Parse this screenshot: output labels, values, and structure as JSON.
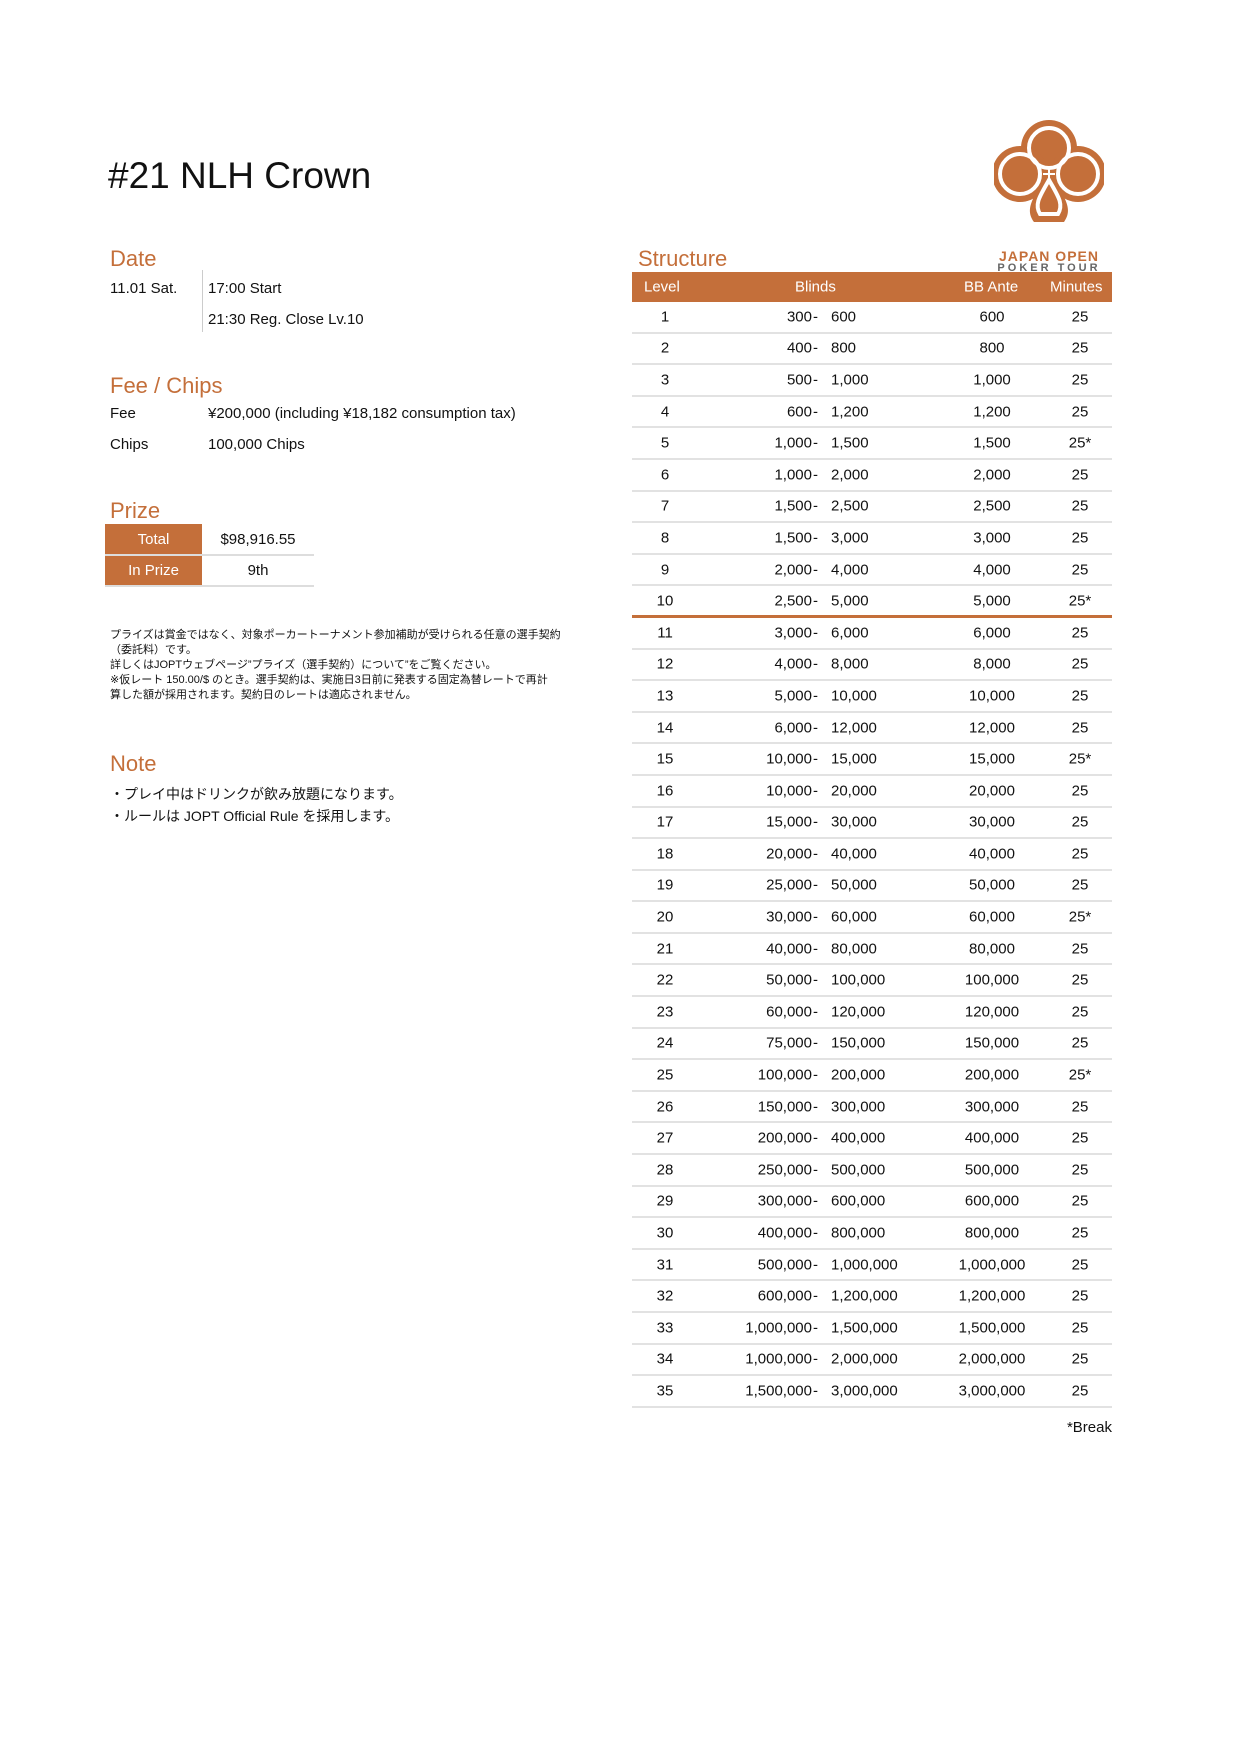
{
  "title": "#21 NLH Crown",
  "logo": {
    "line1": "JAPAN OPEN",
    "line2": "POKER TOUR",
    "color": "#c46f3a"
  },
  "date": {
    "heading": "Date",
    "day": "11.01 Sat.",
    "start": "17:00 Start",
    "close": "21:30 Reg. Close Lv.10"
  },
  "fee": {
    "heading": "Fee / Chips",
    "fee_label": "Fee",
    "fee_value": "¥200,000 (including ¥18,182 consumption tax)",
    "chips_label": "Chips",
    "chips_value": "100,000 Chips"
  },
  "prize": {
    "heading": "Prize",
    "total_label": "Total",
    "total_value": "$98,916.55",
    "inprize_label": "In Prize",
    "inprize_value": "9th"
  },
  "disclaimer": [
    "プライズは賞金ではなく、対象ポーカートーナメント参加補助が受けられる任意の選手契約",
    "（委託料）です。",
    "詳しくはJOPTウェブページ”プライズ（選手契約）について”をご覧ください。",
    "※仮レート 150.00/$ のとき。選手契約は、実施日3日前に発表する固定為替レートで再計",
    "算した額が採用されます。契約日のレートは適応されません。"
  ],
  "note": {
    "heading": "Note",
    "lines": [
      "・プレイ中はドリンクが飲み放題になります。",
      "・ルールは JOPT Official Rule を採用します。"
    ]
  },
  "structure": {
    "heading": "Structure",
    "columns": [
      "Level",
      "Blinds",
      "BB Ante",
      "Minutes"
    ],
    "rows": [
      [
        "1",
        "300",
        "600",
        "600",
        "25"
      ],
      [
        "2",
        "400",
        "800",
        "800",
        "25"
      ],
      [
        "3",
        "500",
        "1,000",
        "1,000",
        "25"
      ],
      [
        "4",
        "600",
        "1,200",
        "1,200",
        "25"
      ],
      [
        "5",
        "1,000",
        "1,500",
        "1,500",
        "25*"
      ],
      [
        "6",
        "1,000",
        "2,000",
        "2,000",
        "25"
      ],
      [
        "7",
        "1,500",
        "2,500",
        "2,500",
        "25"
      ],
      [
        "8",
        "1,500",
        "3,000",
        "3,000",
        "25"
      ],
      [
        "9",
        "2,000",
        "4,000",
        "4,000",
        "25"
      ],
      [
        "10",
        "2,500",
        "5,000",
        "5,000",
        "25*"
      ],
      [
        "11",
        "3,000",
        "6,000",
        "6,000",
        "25"
      ],
      [
        "12",
        "4,000",
        "8,000",
        "8,000",
        "25"
      ],
      [
        "13",
        "5,000",
        "10,000",
        "10,000",
        "25"
      ],
      [
        "14",
        "6,000",
        "12,000",
        "12,000",
        "25"
      ],
      [
        "15",
        "10,000",
        "15,000",
        "15,000",
        "25*"
      ],
      [
        "16",
        "10,000",
        "20,000",
        "20,000",
        "25"
      ],
      [
        "17",
        "15,000",
        "30,000",
        "30,000",
        "25"
      ],
      [
        "18",
        "20,000",
        "40,000",
        "40,000",
        "25"
      ],
      [
        "19",
        "25,000",
        "50,000",
        "50,000",
        "25"
      ],
      [
        "20",
        "30,000",
        "60,000",
        "60,000",
        "25*"
      ],
      [
        "21",
        "40,000",
        "80,000",
        "80,000",
        "25"
      ],
      [
        "22",
        "50,000",
        "100,000",
        "100,000",
        "25"
      ],
      [
        "23",
        "60,000",
        "120,000",
        "120,000",
        "25"
      ],
      [
        "24",
        "75,000",
        "150,000",
        "150,000",
        "25"
      ],
      [
        "25",
        "100,000",
        "200,000",
        "200,000",
        "25*"
      ],
      [
        "26",
        "150,000",
        "300,000",
        "300,000",
        "25"
      ],
      [
        "27",
        "200,000",
        "400,000",
        "400,000",
        "25"
      ],
      [
        "28",
        "250,000",
        "500,000",
        "500,000",
        "25"
      ],
      [
        "29",
        "300,000",
        "600,000",
        "600,000",
        "25"
      ],
      [
        "30",
        "400,000",
        "800,000",
        "800,000",
        "25"
      ],
      [
        "31",
        "500,000",
        "1,000,000",
        "1,000,000",
        "25"
      ],
      [
        "32",
        "600,000",
        "1,200,000",
        "1,200,000",
        "25"
      ],
      [
        "33",
        "1,000,000",
        "1,500,000",
        "1,500,000",
        "25"
      ],
      [
        "34",
        "1,000,000",
        "2,000,000",
        "2,000,000",
        "25"
      ],
      [
        "35",
        "1,500,000",
        "3,000,000",
        "3,000,000",
        "25"
      ]
    ],
    "separator": "-",
    "footnote": "*Break"
  }
}
